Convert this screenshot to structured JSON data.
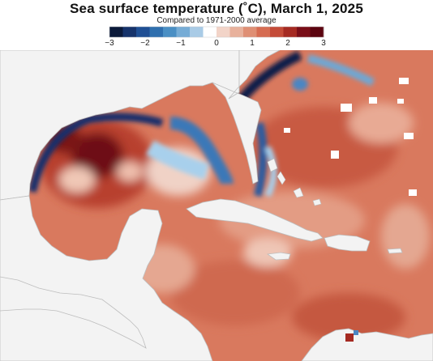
{
  "title": "Sea surface temperature (˚C), March 1, 2025",
  "subtitle": "Compared to 1971-2000 average",
  "legend": {
    "ticks": [
      {
        "value": -3,
        "label": "−3"
      },
      {
        "value": -2,
        "label": "−2"
      },
      {
        "value": -1,
        "label": "−1"
      },
      {
        "value": 0,
        "label": "0"
      },
      {
        "value": 1,
        "label": "1"
      },
      {
        "value": 2,
        "label": "2"
      },
      {
        "value": 3,
        "label": "3"
      }
    ],
    "colors": [
      "#0b1a3a",
      "#16336b",
      "#1f4f94",
      "#2f6fae",
      "#4a8fc4",
      "#76acd6",
      "#a9cbe6",
      "#ffffff",
      "#f2d4c8",
      "#e8b19c",
      "#df8f74",
      "#d66c52",
      "#c44b38",
      "#a52a22",
      "#7a0e18",
      "#5c0510"
    ]
  },
  "map": {
    "ocean_color": "#d9795e",
    "land_color": "#f3f3f3",
    "hot_color": "#8c1a1a",
    "cold_color": "#1c3f8c",
    "light_blue_color": "#a8d0ec"
  }
}
